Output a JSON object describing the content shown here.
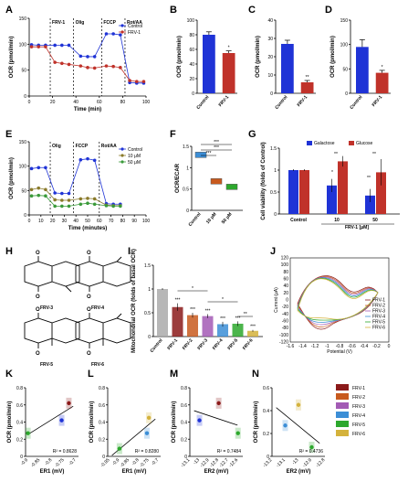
{
  "labels": {
    "A": "A",
    "B": "B",
    "C": "C",
    "D": "D",
    "E": "E",
    "F": "F",
    "G": "G",
    "H": "H",
    "I": "I",
    "J": "J",
    "K": "K",
    "L": "L",
    "M": "M",
    "N": "N"
  },
  "colors": {
    "blue": "#1f33d6",
    "red": "#c0322a",
    "green": "#3a9a3a",
    "olive": "#8a7a2a",
    "frv1": "#8b1a1a",
    "frv2": "#c85a1e",
    "frv3": "#a35bb5",
    "frv4": "#3c8ed6",
    "frv5": "#2da82d",
    "frv6": "#d4b23c"
  },
  "structures": [
    "FRV-3",
    "FRV-4",
    "FRV-5",
    "FRV-6"
  ],
  "chart_data": [
    {
      "id": "A",
      "type": "line",
      "xlabel": "Time (min)",
      "ylabel": "OCR (pmol/min)",
      "xlim": [
        0,
        100
      ],
      "ylim": [
        0,
        150
      ],
      "xticks": [
        0,
        20,
        40,
        60,
        80,
        100
      ],
      "yticks": [
        0,
        50,
        100,
        150
      ],
      "annotations": [
        "FRV-1",
        "Olig",
        "FCCP",
        "Rot/AA"
      ],
      "legend": [
        "Control",
        "FRV-1"
      ],
      "series": [
        {
          "name": "Control",
          "x": [
            2,
            8,
            14,
            22,
            28,
            34,
            44,
            50,
            56,
            66,
            72,
            78,
            86,
            92,
            98
          ],
          "y": [
            99,
            98,
            98,
            98,
            98,
            98,
            77,
            76,
            76,
            120,
            120,
            118,
            26,
            25,
            25
          ]
        },
        {
          "name": "FRV-1",
          "x": [
            2,
            8,
            14,
            22,
            28,
            34,
            44,
            50,
            56,
            66,
            72,
            78,
            86,
            92,
            98
          ],
          "y": [
            95,
            95,
            95,
            65,
            63,
            61,
            58,
            55,
            54,
            58,
            57,
            55,
            30,
            28,
            28
          ]
        }
      ]
    },
    {
      "id": "B",
      "type": "bar",
      "ylabel": "OCR (pmol/min)",
      "categories": [
        "Control",
        "FRV-1"
      ],
      "values": [
        80,
        55
      ],
      "errors": [
        4,
        3
      ],
      "ylim": [
        0,
        100
      ],
      "yticks": [
        0,
        20,
        40,
        60,
        80,
        100
      ],
      "sig": [
        "",
        "*"
      ]
    },
    {
      "id": "C",
      "type": "bar",
      "ylabel": "OCR (pmol/min)",
      "categories": [
        "Control",
        "FRV-1"
      ],
      "values": [
        27,
        6
      ],
      "errors": [
        2,
        1
      ],
      "ylim": [
        0,
        40
      ],
      "yticks": [
        0,
        10,
        20,
        30,
        40
      ],
      "sig": [
        "",
        "**"
      ]
    },
    {
      "id": "D",
      "type": "bar",
      "ylabel": "OCR (pmol/min)",
      "categories": [
        "Control",
        "FRV-1"
      ],
      "values": [
        95,
        42
      ],
      "errors": [
        15,
        5
      ],
      "ylim": [
        0,
        150
      ],
      "yticks": [
        0,
        50,
        100,
        150
      ],
      "sig": [
        "",
        "*"
      ]
    },
    {
      "id": "E",
      "type": "line",
      "xlabel": "Time (minutes)",
      "ylabel": "OCR (pmol/min)",
      "xlim": [
        0,
        100
      ],
      "ylim": [
        0,
        150
      ],
      "xticks": [
        0,
        10,
        20,
        30,
        40,
        50,
        60,
        70,
        80,
        90,
        100
      ],
      "yticks": [
        0,
        50,
        100,
        150
      ],
      "annotations": [
        "Olig",
        "FCCP",
        "Rot/AA"
      ],
      "legend": [
        "Control",
        "10 μM",
        "50 μM"
      ],
      "series": [
        {
          "name": "Control",
          "x": [
            2,
            8,
            14,
            22,
            28,
            34,
            44,
            50,
            56,
            66,
            72,
            78
          ],
          "y": [
            95,
            97,
            97,
            45,
            44,
            44,
            113,
            115,
            112,
            23,
            22,
            22
          ]
        },
        {
          "name": "10 μM",
          "x": [
            2,
            8,
            14,
            22,
            28,
            34,
            44,
            50,
            56,
            66,
            72,
            78
          ],
          "y": [
            52,
            55,
            52,
            31,
            30,
            30,
            33,
            34,
            33,
            20,
            19,
            19
          ]
        },
        {
          "name": "50 μM",
          "x": [
            2,
            8,
            14,
            22,
            28,
            34,
            44,
            50,
            56,
            66,
            72,
            78
          ],
          "y": [
            39,
            40,
            39,
            18,
            18,
            18,
            22,
            24,
            22,
            19,
            18,
            18
          ]
        }
      ]
    },
    {
      "id": "F",
      "type": "bar",
      "ylabel": "OCR/ECAR",
      "categories": [
        "Control",
        "10 μM",
        "50 μM"
      ],
      "values": [
        1.3,
        0.68,
        0.55
      ],
      "ylim": [
        0.0,
        1.5
      ],
      "yticks": [
        0.0,
        0.5,
        1.0,
        1.5
      ],
      "sig": [
        "***",
        "***",
        "***"
      ]
    },
    {
      "id": "G",
      "type": "bar",
      "ylabel": "Cell viability (folds of Control)",
      "xlabel": "FRV-1 [μM]",
      "categories": [
        "Control",
        "10",
        "50"
      ],
      "series": [
        {
          "name": "Galactose",
          "values": [
            1.0,
            0.65,
            0.42
          ],
          "errors": [
            0.02,
            0.15,
            0.15
          ]
        },
        {
          "name": "Glucose",
          "values": [
            1.0,
            1.2,
            0.95
          ],
          "errors": [
            0.02,
            0.12,
            0.3
          ]
        }
      ],
      "ylim": [
        0.0,
        1.5
      ],
      "yticks": [
        0.0,
        0.5,
        1.0,
        1.5
      ],
      "sig": [
        "**",
        "**",
        "*",
        "**"
      ]
    },
    {
      "id": "I",
      "type": "bar",
      "ylabel": "Mitochondrial OCR (folds of basal OCR)",
      "categories": [
        "Control",
        "FRV-1",
        "FRV-2",
        "FRV-3",
        "FRV-4",
        "FRV-5",
        "FRV-6"
      ],
      "values": [
        1.0,
        0.62,
        0.45,
        0.43,
        0.26,
        0.27,
        0.12
      ],
      "errors": [
        0.02,
        0.08,
        0.05,
        0.04,
        0.05,
        0.05,
        0.02
      ],
      "ylim": [
        0.0,
        1.5
      ],
      "yticks": [
        0.0,
        0.5,
        1.0,
        1.5
      ],
      "sig": [
        "",
        "***",
        "***",
        "***",
        "***",
        "***",
        "***",
        "*",
        "*",
        "**"
      ]
    },
    {
      "id": "J",
      "type": "line",
      "xlabel": "Potential (V)",
      "ylabel": "Current (μA)",
      "xlim": [
        -1.6,
        0.0
      ],
      "ylim": [
        -120,
        120
      ],
      "xticks": [
        -1.6,
        -1.4,
        -1.2,
        -1.0,
        -0.8,
        -0.6,
        -0.4,
        -0.2,
        0.0
      ],
      "yticks": [
        -120,
        -100,
        -80,
        -60,
        -40,
        -20,
        0,
        20,
        40,
        60,
        80,
        100,
        120
      ],
      "legend": [
        "FRV-1",
        "FRV-2",
        "FRV-3",
        "FRV-4",
        "FRV-5",
        "FRV-6"
      ]
    },
    {
      "id": "K",
      "type": "scatter",
      "xlabel": "ER1 (mV)",
      "ylabel": "OCR (pmol/min)",
      "xlim": [
        -0.91,
        -0.69
      ],
      "ylim": [
        0,
        0.8
      ],
      "xticks": [
        -0.9,
        -0.85,
        -0.8,
        -0.75,
        -0.7
      ],
      "yticks": [
        0,
        0.2,
        0.4,
        0.6,
        0.8
      ],
      "r2": "R² = 0.8628",
      "x": [
        -0.9,
        -0.76,
        -0.73
      ],
      "y": [
        0.27,
        0.42,
        0.62
      ]
    },
    {
      "id": "L",
      "type": "scatter",
      "xlabel": "ER1 (mV)",
      "ylabel": "OCR (pmol/min)",
      "xlim": [
        -0.96,
        -0.69
      ],
      "ylim": [
        0,
        0.8
      ],
      "xticks": [
        -0.95,
        -0.9,
        -0.85,
        -0.8,
        -0.75,
        -0.7
      ],
      "yticks": [
        0,
        0.2,
        0.4,
        0.6,
        0.8
      ],
      "r2": "R² = 0.8280",
      "x": [
        -0.9,
        -0.76,
        -0.75
      ],
      "y": [
        0.09,
        0.27,
        0.45
      ]
    },
    {
      "id": "M",
      "type": "scatter",
      "xlabel": "ER2 (mV)",
      "ylabel": "OCR (pmol/min)",
      "xlim": [
        -13.1,
        -12.55
      ],
      "ylim": [
        0,
        0.8
      ],
      "xticks": [
        -13.1,
        -13.0,
        -12.9,
        -12.8,
        -12.7,
        -12.6
      ],
      "yticks": [
        0,
        0.2,
        0.4,
        0.6,
        0.8
      ],
      "r2": "R² = 0.7484",
      "x": [
        -13.0,
        -12.8,
        -12.6
      ],
      "y": [
        0.42,
        0.62,
        0.27
      ]
    },
    {
      "id": "N",
      "type": "scatter",
      "xlabel": "ER2 (mV)",
      "ylabel": "OCR (pmol/min)",
      "xlim": [
        -13.2,
        -12.8
      ],
      "ylim": [
        0,
        0.6
      ],
      "xticks": [
        -13.2,
        -13.1,
        -13.0,
        -12.9,
        -12.8
      ],
      "yticks": [
        0,
        0.2,
        0.4,
        0.6
      ],
      "r2": "R² = 0.4736",
      "x": [
        -13.1,
        -13.0,
        -12.9
      ],
      "y": [
        0.27,
        0.45,
        0.08
      ]
    },
    {
      "id": "legend-KN",
      "legend": [
        "FRV-1",
        "FRV-2",
        "FRV-3",
        "FRV-4",
        "FRV-5",
        "FRV-6"
      ]
    }
  ]
}
